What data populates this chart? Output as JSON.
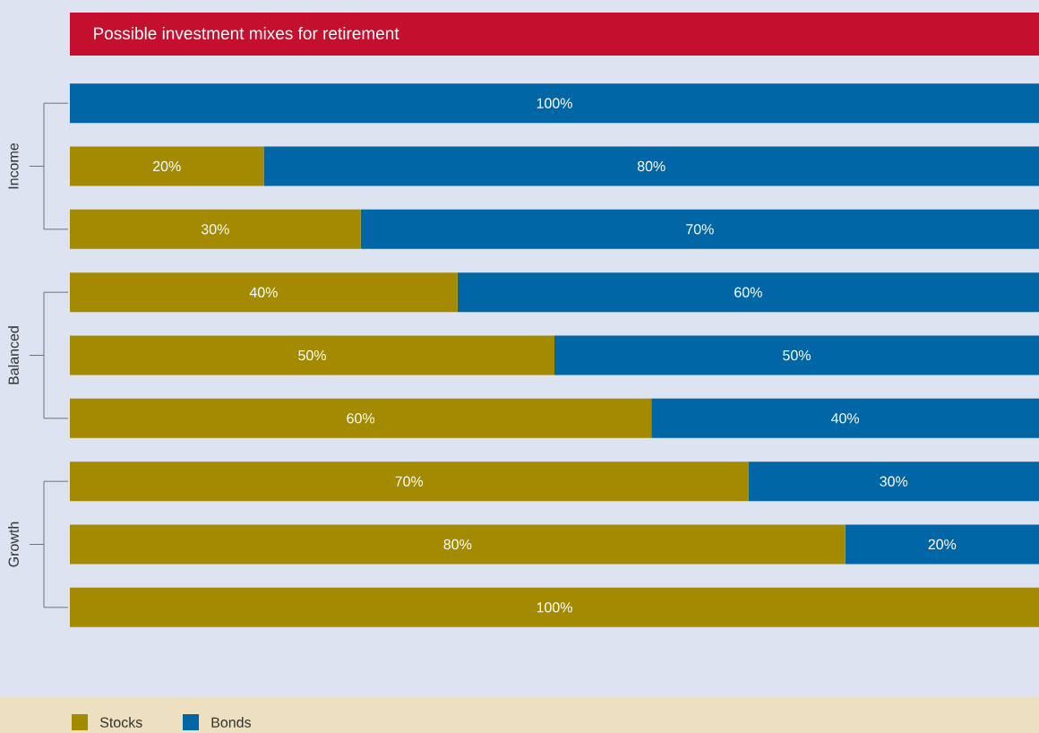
{
  "chart_data": {
    "type": "bar",
    "orientation": "horizontal",
    "stacked": true,
    "title": "Possible investment mixes for retirement",
    "categories": [
      null,
      null,
      null,
      null,
      null,
      null,
      null,
      null,
      null
    ],
    "xlim": [
      0,
      100
    ],
    "tick_labels": false,
    "legend": "bottom",
    "series": [
      {
        "name": "Stocks",
        "color": "#a38a00",
        "values": [
          0,
          20,
          30,
          40,
          50,
          60,
          70,
          80,
          100
        ],
        "value_labels": [
          null,
          "20%",
          "30%",
          "40%",
          "50%",
          "60%",
          "70%",
          "80%",
          "100%"
        ]
      },
      {
        "name": "Bonds",
        "color": "#0066a6",
        "values": [
          100,
          80,
          70,
          60,
          50,
          40,
          30,
          20,
          0
        ],
        "value_labels": [
          "100%",
          "80%",
          "70%",
          "60%",
          "50%",
          "40%",
          "30%",
          "20%",
          null
        ]
      }
    ],
    "annotations": [
      "Income",
      "Balanced",
      "Growth"
    ]
  }
}
